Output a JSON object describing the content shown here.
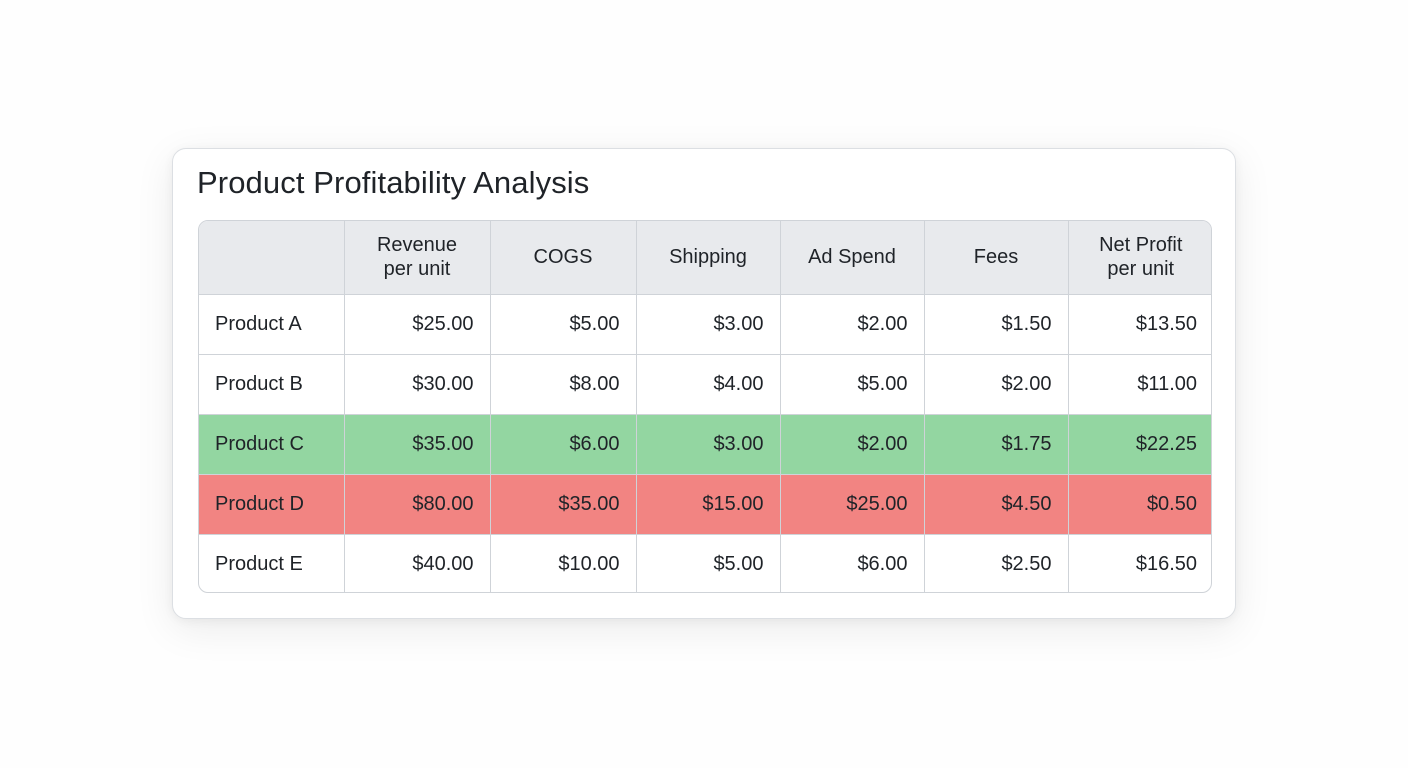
{
  "title": "Product Profitability Analysis",
  "colors": {
    "header_bg": "#e8eaed",
    "positive_row": "#93d6a1",
    "negative_row": "#f28482",
    "border": "#cfd3d8"
  },
  "chart_data": {
    "type": "table",
    "title": "Product Profitability Analysis",
    "columns": [
      "",
      "Revenue\nper unit",
      "COGS",
      "Shipping",
      "Ad Spend",
      "Fees",
      "Net Profit\nper unit"
    ],
    "rows": [
      {
        "product": "Product A",
        "values": [
          "$25.00",
          "$5.00",
          "$3.00",
          "$2.00",
          "$1.50",
          "$13.50"
        ],
        "highlight": "none"
      },
      {
        "product": "Product B",
        "values": [
          "$30.00",
          "$8.00",
          "$4.00",
          "$5.00",
          "$2.00",
          "$11.00"
        ],
        "highlight": "none"
      },
      {
        "product": "Product C",
        "values": [
          "$35.00",
          "$6.00",
          "$3.00",
          "$2.00",
          "$1.75",
          "$22.25"
        ],
        "highlight": "good"
      },
      {
        "product": "Product D",
        "values": [
          "$80.00",
          "$35.00",
          "$15.00",
          "$25.00",
          "$4.50",
          "$0.50"
        ],
        "highlight": "bad"
      },
      {
        "product": "Product E",
        "values": [
          "$40.00",
          "$10.00",
          "$5.00",
          "$6.00",
          "$2.50",
          "$16.50"
        ],
        "highlight": "none"
      }
    ]
  }
}
